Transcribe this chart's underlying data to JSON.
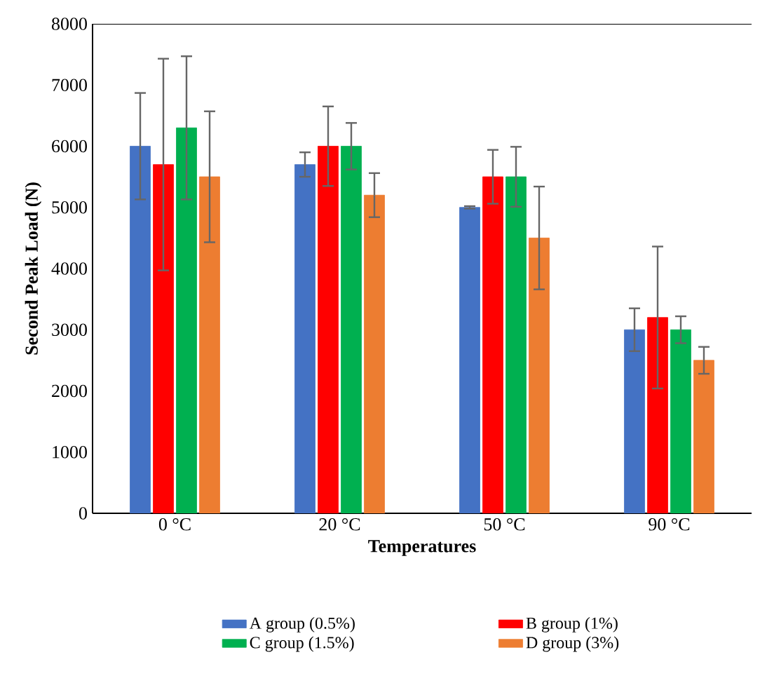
{
  "chart_data": {
    "type": "bar",
    "xlabel": "Temperatures",
    "ylabel": "Second Peak Load (N)",
    "categories": [
      "0 °C",
      "20 °C",
      "50 °C",
      "90 °C"
    ],
    "series": [
      {
        "name": "A group (0.5%)",
        "color": "#4472c4",
        "values": [
          6000,
          5700,
          5000,
          3000
        ],
        "errors": [
          870,
          200,
          20,
          350
        ]
      },
      {
        "name": "B group (1%)",
        "color": "#ff0000",
        "values": [
          5700,
          6000,
          5500,
          3200
        ],
        "errors": [
          1730,
          650,
          440,
          1160
        ]
      },
      {
        "name": "C group (1.5%)",
        "color": "#00b050",
        "values": [
          6300,
          6000,
          5500,
          3000
        ],
        "errors": [
          1170,
          380,
          490,
          220
        ]
      },
      {
        "name": "D group (3%)",
        "color": "#ed7d31",
        "values": [
          5500,
          5200,
          4500,
          2500
        ],
        "errors": [
          1070,
          360,
          840,
          220
        ]
      }
    ],
    "ylim": [
      0,
      8000
    ],
    "yticks": [
      0,
      1000,
      2000,
      3000,
      4000,
      5000,
      6000,
      7000,
      8000
    ],
    "legend": "bottom"
  }
}
